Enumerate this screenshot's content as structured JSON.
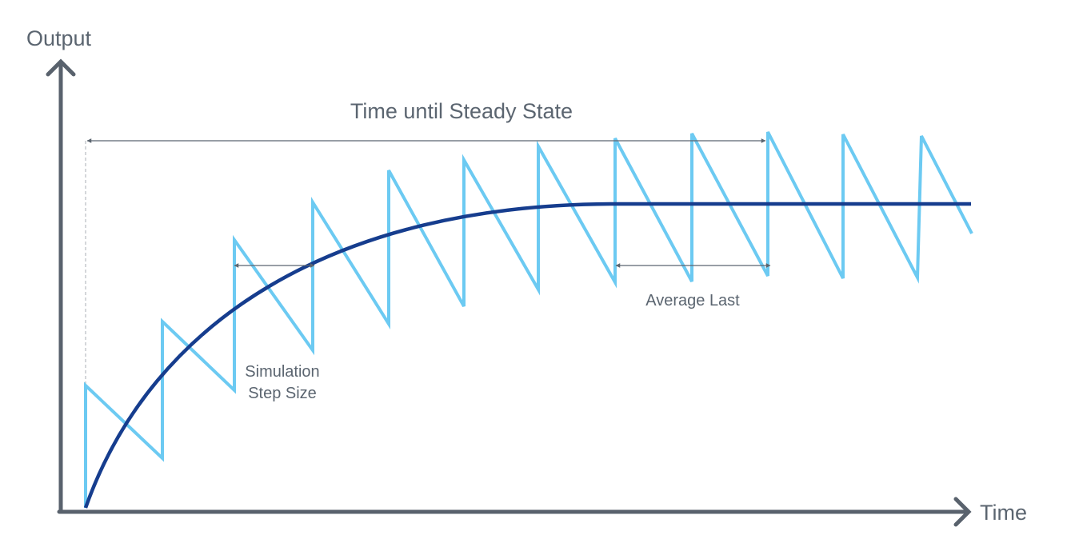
{
  "axes": {
    "y_label": "Output",
    "x_label": "Time"
  },
  "annotations": {
    "steady_state": "Time until Steady State",
    "step_size_line1": "Simulation",
    "step_size_line2": "Step Size",
    "average_last": "Average Last"
  },
  "colors": {
    "axis": "#59626d",
    "simulation_signal": "#6ccaf2",
    "smoothed_response": "#163d8e",
    "annotation": "#5b6570"
  }
}
